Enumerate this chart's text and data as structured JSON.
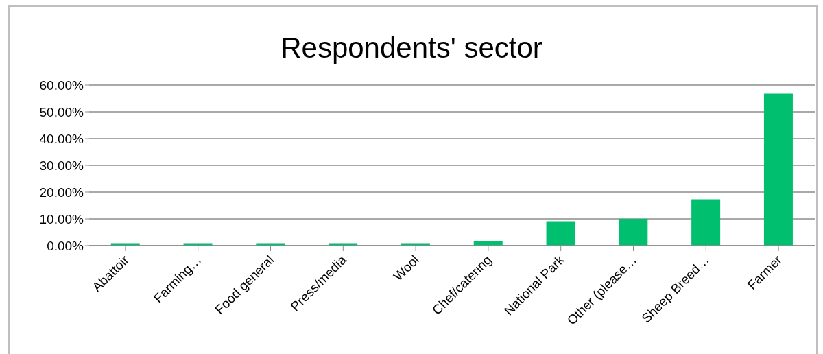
{
  "chart_data": {
    "type": "bar",
    "title": "Respondents' sector",
    "categories": [
      "Abattoir",
      "Farming…",
      "Food general",
      "Press/media",
      "Wool",
      "Chef/catering",
      "National Park",
      "Other (please…",
      "Sheep Breed…",
      "Farmer"
    ],
    "values": [
      0.9,
      0.9,
      0.9,
      0.9,
      0.9,
      1.7,
      9.1,
      10.0,
      17.3,
      56.8
    ],
    "color": "#00bf6f",
    "ylim": [
      0,
      60
    ],
    "yticks": [
      {
        "value": 0,
        "label": "0.00%"
      },
      {
        "value": 10,
        "label": "10.00%"
      },
      {
        "value": 20,
        "label": "20.00%"
      },
      {
        "value": 30,
        "label": "30.00%"
      },
      {
        "value": 40,
        "label": "40.00%"
      },
      {
        "value": 50,
        "label": "50.00%"
      },
      {
        "value": 60,
        "label": "60.00%"
      }
    ],
    "grid": "y"
  }
}
